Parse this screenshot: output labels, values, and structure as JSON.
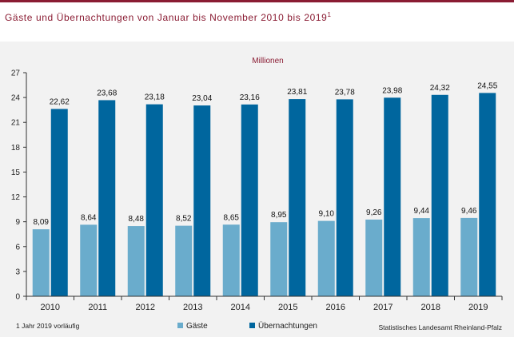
{
  "page": {
    "title": "Gäste und Übernachtungen von Januar bis November 2010 bis 2019",
    "title_sup": "1",
    "footnote": "1 Jahr 2019 vorläufig",
    "source": "Statistisches Landesamt Rheinland-Pfalz"
  },
  "chart_data": {
    "type": "bar",
    "title": "",
    "unit_label": "Millionen",
    "categories": [
      "2010",
      "2011",
      "2012",
      "2013",
      "2014",
      "2015",
      "2016",
      "2017",
      "2018",
      "2019"
    ],
    "series": [
      {
        "name": "Gäste",
        "color": "#6aaccc",
        "values": [
          8.09,
          8.64,
          8.48,
          8.52,
          8.65,
          8.95,
          9.1,
          9.26,
          9.44,
          9.46
        ],
        "labels": [
          "8,09",
          "8,64",
          "8,48",
          "8,52",
          "8,65",
          "8,95",
          "9,10",
          "9,26",
          "9,44",
          "9,46"
        ]
      },
      {
        "name": "Übernachtungen",
        "color": "#00669e",
        "values": [
          22.62,
          23.68,
          23.18,
          23.04,
          23.16,
          23.81,
          23.78,
          23.98,
          24.32,
          24.55
        ],
        "labels": [
          "22,62",
          "23,68",
          "23,18",
          "23,04",
          "23,16",
          "23,81",
          "23,78",
          "23,98",
          "24,32",
          "24,55"
        ]
      }
    ],
    "ylim": [
      0,
      27
    ],
    "yticks": [
      0,
      3,
      6,
      9,
      12,
      15,
      18,
      21,
      24,
      27
    ],
    "grid": false,
    "legend_position": "bottom"
  }
}
